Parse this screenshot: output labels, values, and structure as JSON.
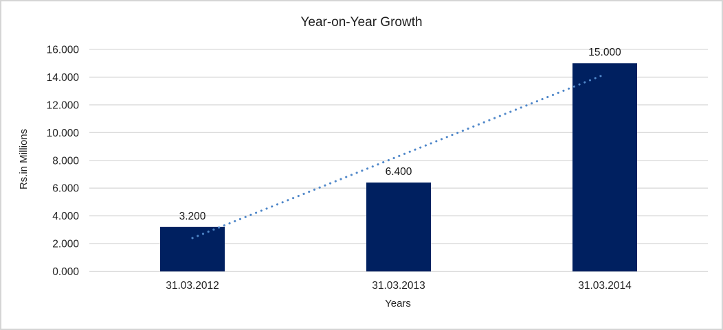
{
  "chart_data": {
    "type": "bar",
    "title": "Year-on-Year Growth",
    "xlabel": "Years",
    "ylabel": "Rs.in Millions",
    "categories": [
      "31.03.2012",
      "31.03.2013",
      "31.03.2014"
    ],
    "values": [
      3.2,
      6.4,
      15.0
    ],
    "value_labels": [
      "3.200",
      "6.400",
      "15.000"
    ],
    "ylim": [
      0,
      16
    ],
    "ytick_step": 2,
    "ytick_labels": [
      "0.000",
      "2.000",
      "4.000",
      "6.000",
      "8.000",
      "10.000",
      "12.000",
      "14.000",
      "16.000"
    ],
    "grid": "horizontal-only",
    "legend": "none",
    "bar_color": "#002060",
    "trendline": {
      "type": "linear",
      "style": "dotted",
      "color": "#4f87c9",
      "start": {
        "category_index": 0,
        "value": 2.4
      },
      "end": {
        "category_index": 2,
        "value": 14.2
      }
    },
    "colors": {
      "gridline": "#d9d9d9",
      "text": "#232323",
      "background": "#ffffff",
      "frame_border": "#d5d5d5"
    }
  }
}
